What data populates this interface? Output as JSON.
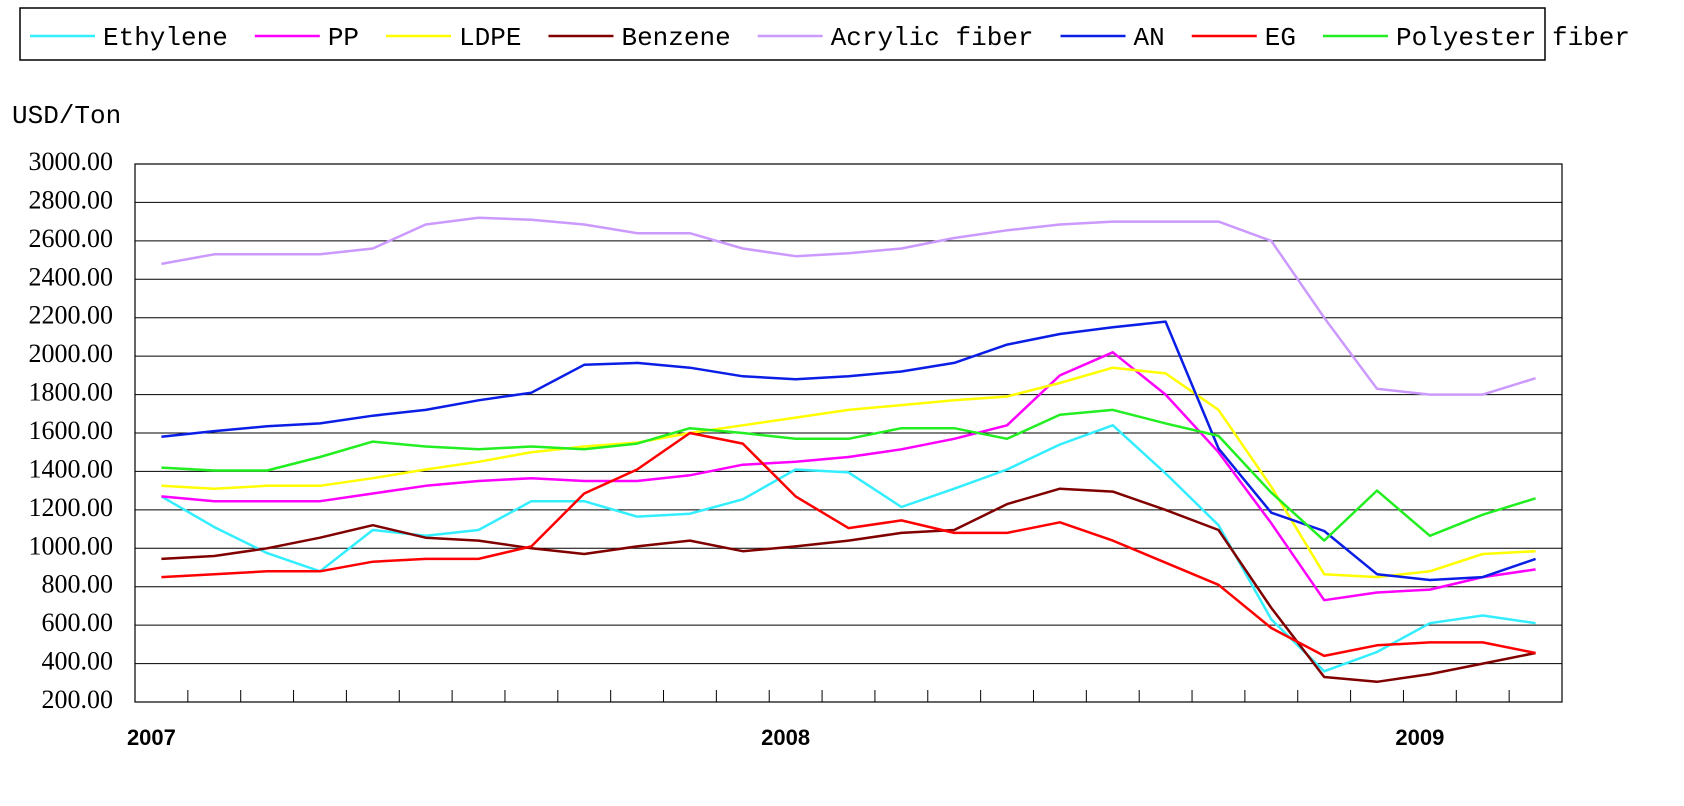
{
  "chart_data": {
    "type": "line",
    "y_axis_label": "USD/Ton",
    "categories": [
      "2007",
      null,
      null,
      null,
      null,
      null,
      null,
      null,
      null,
      null,
      null,
      null,
      "2008",
      null,
      null,
      null,
      null,
      null,
      null,
      null,
      null,
      null,
      null,
      null,
      "2009",
      null,
      null
    ],
    "ylim": [
      200,
      3000
    ],
    "yticks": [
      {
        "value": 200,
        "label": "200.00"
      },
      {
        "value": 400,
        "label": "400.00"
      },
      {
        "value": 600,
        "label": "600.00"
      },
      {
        "value": 800,
        "label": "800.00"
      },
      {
        "value": 1000,
        "label": "1000.00"
      },
      {
        "value": 1200,
        "label": "1200.00"
      },
      {
        "value": 1400,
        "label": "1400.00"
      },
      {
        "value": 1600,
        "label": "1600.00"
      },
      {
        "value": 1800,
        "label": "1800.00"
      },
      {
        "value": 2000,
        "label": "2000.00"
      },
      {
        "value": 2200,
        "label": "2200.00"
      },
      {
        "value": 2400,
        "label": "2400.00"
      },
      {
        "value": 2600,
        "label": "2600.00"
      },
      {
        "value": 2800,
        "label": "2800.00"
      },
      {
        "value": 3000,
        "label": "3000.00"
      }
    ],
    "grid": true,
    "legend": "top",
    "series": [
      {
        "name": "Ethylene",
        "color": "#33eeff",
        "values": [
          1270,
          1110,
          975,
          880,
          1095,
          1065,
          1095,
          1245,
          1245,
          1165,
          1180,
          1255,
          1410,
          1395,
          1215,
          1310,
          1410,
          1540,
          1640,
          1390,
          1120,
          630,
          360,
          460,
          610,
          650,
          610
        ]
      },
      {
        "name": "PP",
        "color": "#ff00ff",
        "values": [
          1270,
          1245,
          1245,
          1245,
          1285,
          1325,
          1350,
          1365,
          1350,
          1350,
          1380,
          1435,
          1450,
          1475,
          1515,
          1570,
          1640,
          1900,
          2020,
          1800,
          1500,
          1130,
          730,
          770,
          785,
          850,
          890
        ]
      },
      {
        "name": "LDPE",
        "color": "#ffff00",
        "values": [
          1325,
          1310,
          1325,
          1325,
          1365,
          1410,
          1450,
          1500,
          1530,
          1550,
          1600,
          1640,
          1680,
          1720,
          1745,
          1770,
          1790,
          1860,
          1940,
          1910,
          1720,
          1320,
          865,
          850,
          880,
          970,
          985
        ]
      },
      {
        "name": "Benzene",
        "color": "#800000",
        "values": [
          945,
          960,
          1000,
          1055,
          1120,
          1055,
          1040,
          1000,
          970,
          1010,
          1040,
          985,
          1010,
          1040,
          1080,
          1095,
          1230,
          1310,
          1295,
          1200,
          1095,
          690,
          330,
          305,
          345,
          400,
          455
        ]
      },
      {
        "name": "Acrylic fiber",
        "color": "#cc99ff",
        "values": [
          2480,
          2530,
          2530,
          2530,
          2560,
          2685,
          2720,
          2710,
          2685,
          2640,
          2640,
          2560,
          2520,
          2535,
          2560,
          2615,
          2655,
          2685,
          2700,
          2700,
          2700,
          2600,
          2200,
          1830,
          1800,
          1800,
          1885
        ]
      },
      {
        "name": "AN",
        "color": "#0a1ee6",
        "values": [
          1580,
          1610,
          1635,
          1650,
          1690,
          1720,
          1770,
          1810,
          1955,
          1965,
          1940,
          1895,
          1880,
          1895,
          1920,
          1965,
          2060,
          2115,
          2150,
          2180,
          1520,
          1185,
          1090,
          865,
          835,
          850,
          945
        ]
      },
      {
        "name": "EG",
        "color": "#ff0000",
        "values": [
          850,
          865,
          880,
          880,
          930,
          945,
          945,
          1010,
          1285,
          1410,
          1600,
          1545,
          1270,
          1105,
          1145,
          1080,
          1080,
          1135,
          1040,
          925,
          810,
          585,
          440,
          495,
          510,
          510,
          455
        ]
      },
      {
        "name": "Polyester fiber",
        "color": "#22ee22",
        "values": [
          1420,
          1405,
          1405,
          1475,
          1555,
          1530,
          1515,
          1530,
          1515,
          1545,
          1625,
          1600,
          1570,
          1570,
          1625,
          1625,
          1570,
          1695,
          1720,
          1650,
          1585,
          1290,
          1040,
          1300,
          1065,
          1175,
          1260
        ]
      }
    ]
  }
}
